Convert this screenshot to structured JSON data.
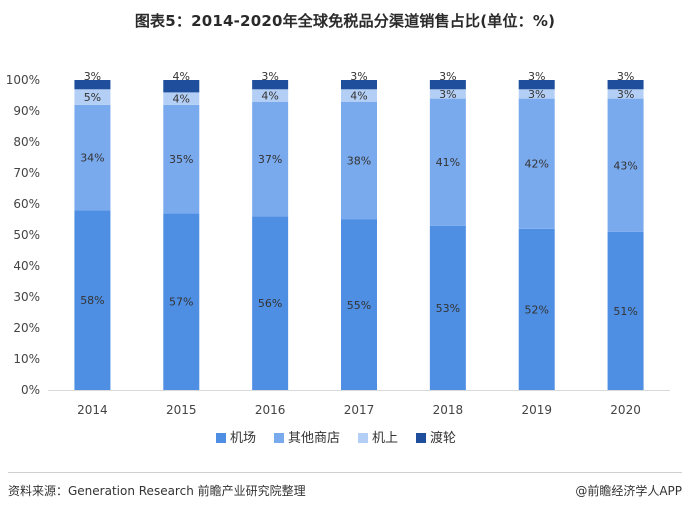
{
  "header": {
    "title": "图表5：2014-2020年全球免税品分渠道销售占比(单位：%)"
  },
  "footer": {
    "source": "资料来源：Generation Research 前瞻产业研究院整理",
    "publisher": "@前瞻经济学人APP"
  },
  "chart_data": {
    "type": "bar",
    "stacked": true,
    "title": "图表5：2014-2020年全球免税品分渠道销售占比(单位：%)",
    "xlabel": "",
    "ylabel": "",
    "ylim": [
      0,
      100
    ],
    "y_ticks": [
      "0%",
      "10%",
      "20%",
      "30%",
      "40%",
      "50%",
      "60%",
      "70%",
      "80%",
      "90%",
      "100%"
    ],
    "grid": false,
    "legend_position": "bottom",
    "categories": [
      "2014",
      "2015",
      "2016",
      "2017",
      "2018",
      "2019",
      "2020"
    ],
    "series": [
      {
        "name": "机场",
        "color": "#4e8fe3",
        "values": [
          58,
          57,
          56,
          55,
          53,
          52,
          51
        ],
        "labels": [
          "58%",
          "57%",
          "56%",
          "55%",
          "53%",
          "52%",
          "51%"
        ]
      },
      {
        "name": "其他商店",
        "color": "#7aaaee",
        "values": [
          34,
          35,
          37,
          38,
          41,
          42,
          43
        ],
        "labels": [
          "34%",
          "35%",
          "37%",
          "38%",
          "41%",
          "42%",
          "43%"
        ]
      },
      {
        "name": "机上",
        "color": "#b4cff5",
        "values": [
          5,
          4,
          4,
          4,
          3,
          3,
          3
        ],
        "labels": [
          "5%",
          "4%",
          "4%",
          "4%",
          "3%",
          "3%",
          "3%"
        ]
      },
      {
        "name": "渡轮",
        "color": "#1f4e9c",
        "values": [
          3,
          4,
          3,
          3,
          3,
          3,
          3
        ],
        "labels": [
          "3%",
          "4%",
          "3%",
          "3%",
          "3%",
          "3%",
          "3%"
        ]
      }
    ]
  }
}
